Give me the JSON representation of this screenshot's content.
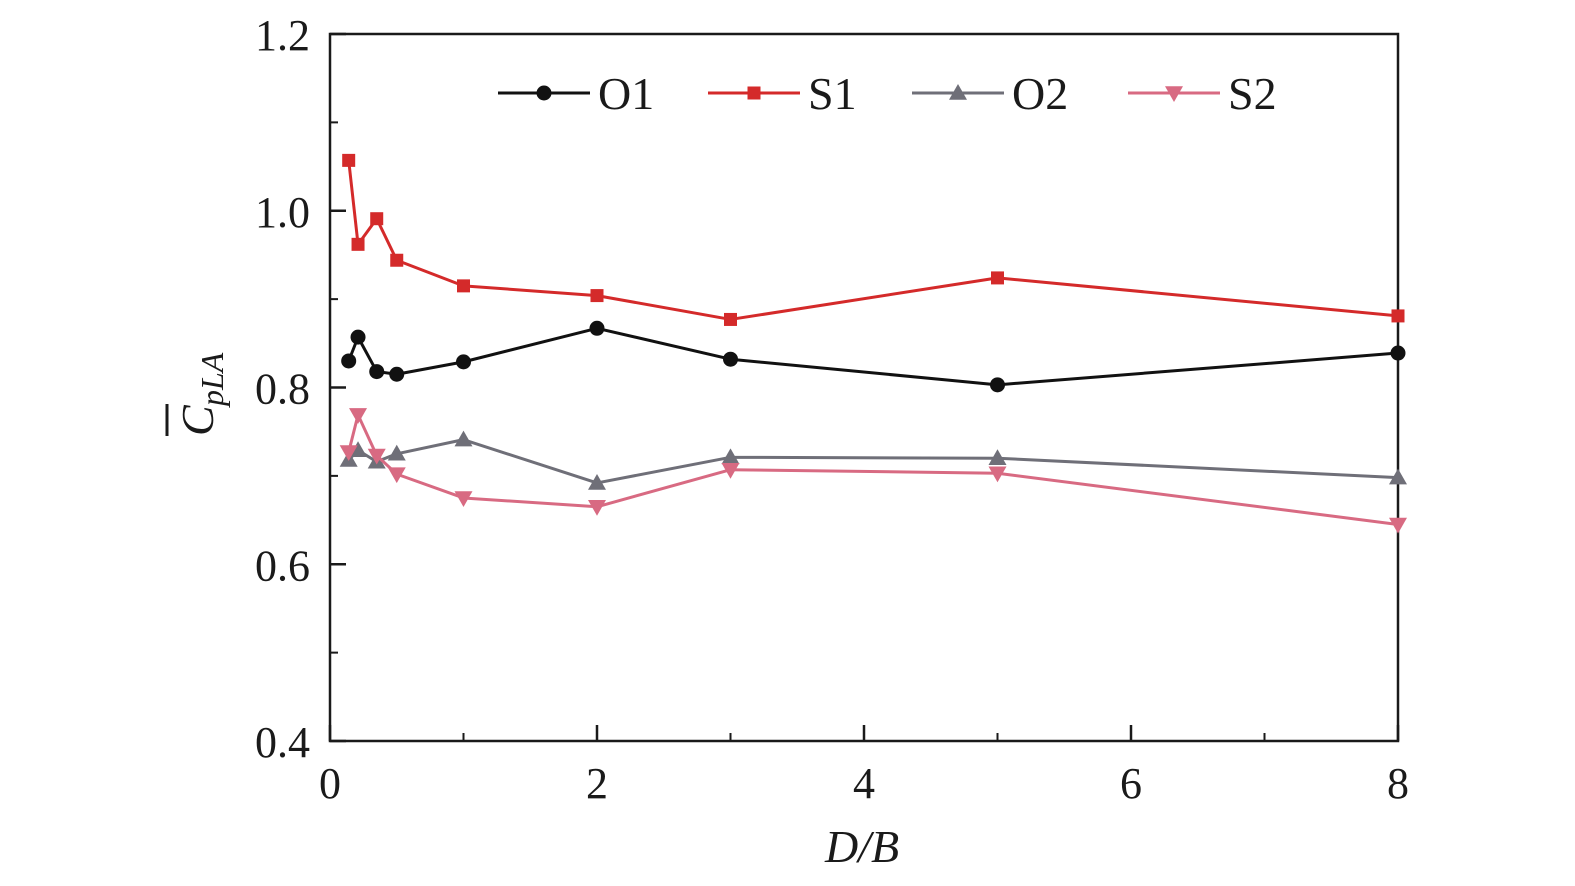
{
  "chart_data": {
    "type": "line",
    "title": "",
    "xlabel": "D/B",
    "ylabel": {
      "main": "C",
      "subscript": "pLA"
    },
    "xlim": [
      0,
      8
    ],
    "ylim": [
      0.4,
      1.2
    ],
    "xticks": [
      0,
      2,
      4,
      6,
      8
    ],
    "yticks": [
      0.4,
      0.6,
      0.8,
      1.0,
      1.2
    ],
    "xtick_labels": [
      "0",
      "2",
      "4",
      "6",
      "8"
    ],
    "ytick_labels": [
      "0.4",
      "0.6",
      "0.8",
      "1.0",
      "1.2"
    ],
    "grid": false,
    "legend_position": "top",
    "series": [
      {
        "name": "O1",
        "color": "#111111",
        "marker": "circle",
        "x": [
          0.14,
          0.21,
          0.35,
          0.5,
          1,
          2,
          3,
          5,
          8
        ],
        "values": [
          0.83,
          0.857,
          0.818,
          0.815,
          0.829,
          0.867,
          0.832,
          0.803,
          0.839
        ]
      },
      {
        "name": "S1",
        "color": "#d42a2a",
        "marker": "square",
        "x": [
          0.14,
          0.21,
          0.35,
          0.5,
          1,
          2,
          3,
          5,
          8
        ],
        "values": [
          1.057,
          0.962,
          0.991,
          0.944,
          0.915,
          0.904,
          0.877,
          0.924,
          0.881
        ]
      },
      {
        "name": "O2",
        "color": "#6f6f78",
        "marker": "triangle-up",
        "x": [
          0.14,
          0.21,
          0.35,
          0.5,
          1,
          2,
          3,
          5,
          8
        ],
        "values": [
          0.718,
          0.729,
          0.716,
          0.725,
          0.741,
          0.692,
          0.721,
          0.72,
          0.698
        ]
      },
      {
        "name": "S2",
        "color": "#d86a82",
        "marker": "triangle-down",
        "x": [
          0.14,
          0.21,
          0.35,
          0.5,
          1,
          2,
          3,
          5,
          8
        ],
        "values": [
          0.727,
          0.769,
          0.723,
          0.702,
          0.675,
          0.665,
          0.707,
          0.703,
          0.645
        ]
      }
    ]
  }
}
